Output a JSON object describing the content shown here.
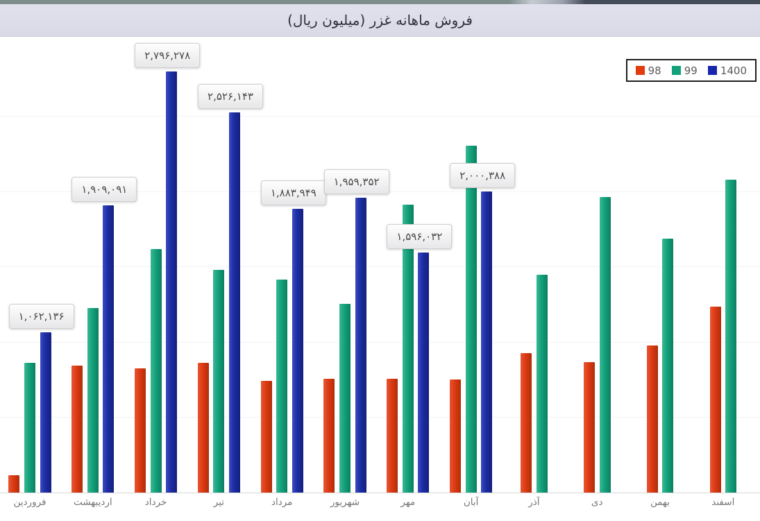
{
  "title_bar": {
    "title": "فروش ماهانه غزر (میلیون ریال)"
  },
  "legend": {
    "position": "top-right",
    "items": [
      {
        "label": "98",
        "color": "#dc3a12"
      },
      {
        "label": "99",
        "color": "#12a17b"
      },
      {
        "label": "1400",
        "color": "#1c2da3"
      }
    ]
  },
  "chart_data": {
    "type": "bar",
    "title": "فروش ماهانه غزر (میلیون ریال)",
    "categories": [
      "فروردین",
      "اردیبهشت",
      "خرداد",
      "تیر",
      "مرداد",
      "شهریور",
      "مهر",
      "آبان",
      "آذر",
      "دی",
      "بهمن",
      "اسفند"
    ],
    "categories_translit": [
      "farvardin",
      "ordibehesht",
      "khordad",
      "tir",
      "mordad",
      "shahrivar",
      "mehr",
      "aban",
      "azar",
      "dey",
      "bahman",
      "esfand"
    ],
    "series": [
      {
        "name": "98",
        "color": "#dc3a12",
        "values": [
          115000,
          843000,
          825000,
          861000,
          742000,
          755000,
          754000,
          751000,
          926000,
          866000,
          977000,
          1235000
        ]
      },
      {
        "name": "99",
        "color": "#12a17b",
        "values": [
          861000,
          1225000,
          1617000,
          1479000,
          1414000,
          1253000,
          1912000,
          2303000,
          1447000,
          1963000,
          1686000,
          2078000
        ]
      },
      {
        "name": "1400",
        "color": "#1c2da3",
        "values": [
          1062136,
          1909091,
          2796278,
          2526143,
          1883949,
          1959352,
          1596032,
          2000388,
          null,
          null,
          null,
          null
        ]
      }
    ],
    "value_labels_series": "1400",
    "labels_1400": [
      "۱,۰۶۲,۱۳۶",
      "۱,۹۰۹,۰۹۱",
      "۲,۷۹۶,۲۷۸",
      "۲,۵۲۶,۱۴۳",
      "۱,۸۸۳,۹۴۹",
      "۱,۹۵۹,۳۵۲",
      "۱,۵۹۶,۰۳۲",
      "۲,۰۰۰,۳۸۸",
      null,
      null,
      null,
      null
    ],
    "ylim": [
      0,
      3000000
    ],
    "gridlines_every": 500000,
    "grid": "on",
    "legend_position": "top-right"
  }
}
